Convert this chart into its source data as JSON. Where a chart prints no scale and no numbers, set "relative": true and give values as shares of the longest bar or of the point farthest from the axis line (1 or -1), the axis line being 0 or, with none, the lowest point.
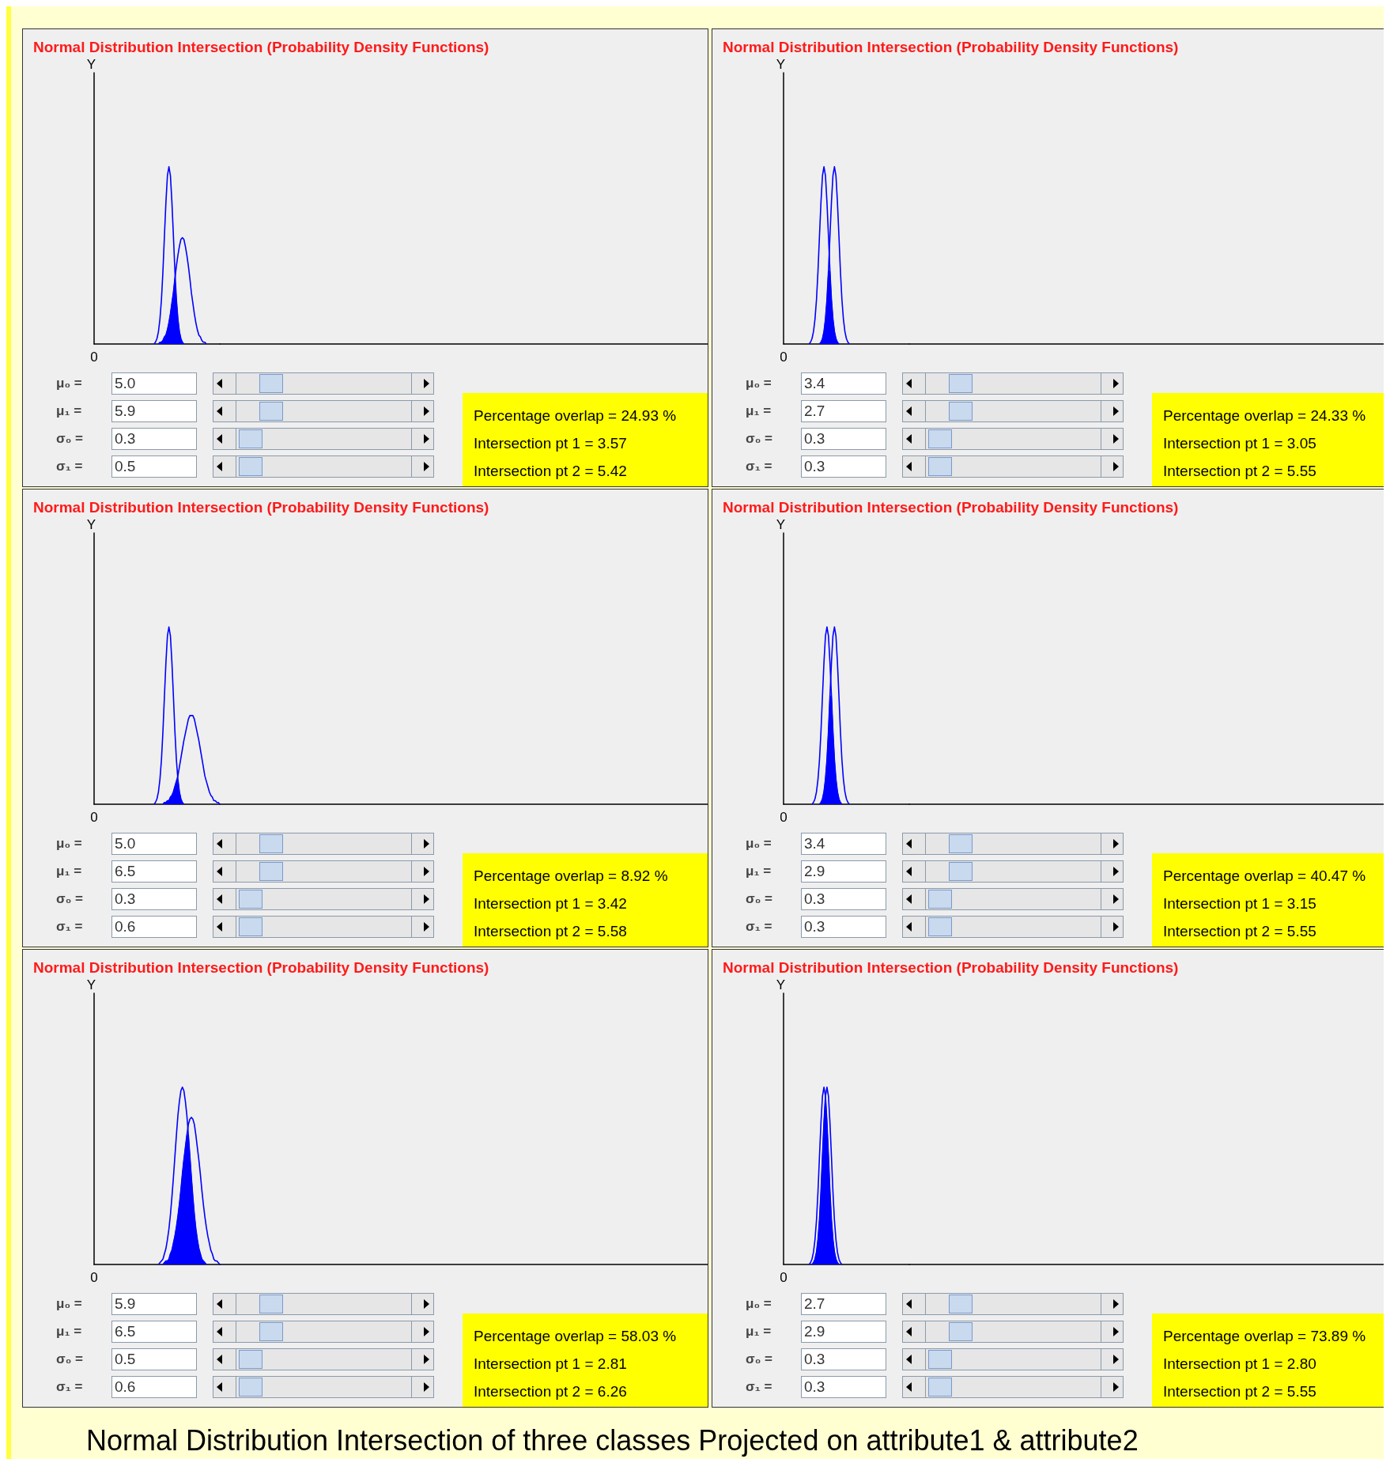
{
  "chart_data": [
    {
      "type": "line",
      "title": "Normal Distribution Intersection (Probability Density Functions)",
      "ylabel": "Y",
      "relative": true,
      "categories": [
        null,
        null,
        null,
        null,
        null,
        null,
        null,
        null,
        null,
        null,
        null,
        null,
        null,
        null,
        null,
        null,
        null,
        null,
        null,
        null,
        null,
        null,
        null,
        null,
        null,
        null,
        null,
        null,
        null,
        null,
        null,
        null,
        null,
        null,
        null,
        null,
        null,
        null,
        null,
        null,
        null,
        null,
        null,
        null,
        null,
        null,
        null,
        null,
        null,
        null,
        null,
        null,
        null,
        null,
        null,
        null,
        null,
        null,
        null,
        null,
        null,
        null,
        null,
        null,
        null,
        null,
        null,
        null,
        null,
        null,
        null,
        null,
        null,
        null,
        null,
        null,
        null,
        null,
        null,
        null,
        null,
        null,
        null,
        null,
        null
      ],
      "series": [
        {
          "color": "#0000ff",
          "values": [
            null,
            null,
            null,
            null,
            null,
            null,
            null,
            null,
            null,
            null,
            null,
            null,
            null,
            null,
            null,
            null,
            null,
            null,
            null,
            null,
            null,
            null,
            null,
            null,
            null,
            null,
            null,
            null,
            null,
            null,
            null,
            null,
            null,
            null,
            null,
            null,
            null,
            null,
            null,
            null,
            0,
            0.01,
            0.03,
            0.07,
            0.14,
            0.25,
            0.41,
            0.61,
            0.8,
            0.95,
            1,
            0.95,
            0.8,
            0.61,
            0.41,
            0.25,
            0.14,
            0.07,
            0.03,
            0.01,
            0,
            null,
            null,
            null,
            null,
            null,
            null,
            null,
            null,
            null,
            null,
            null,
            null,
            null,
            null,
            null,
            null,
            null,
            null,
            null,
            null,
            null,
            null,
            null,
            null
          ]
        },
        {
          "color": "#0000ff",
          "values": [
            null,
            null,
            null,
            null,
            null,
            null,
            null,
            null,
            null,
            null,
            null,
            null,
            null,
            null,
            null,
            null,
            null,
            null,
            null,
            null,
            null,
            null,
            null,
            null,
            null,
            null,
            null,
            null,
            null,
            null,
            null,
            null,
            null,
            null,
            null,
            null,
            null,
            null,
            null,
            null,
            null,
            null,
            null,
            0,
            0.01,
            0.01,
            0.02,
            0.04,
            0.05,
            0.08,
            0.12,
            0.17,
            0.23,
            0.29,
            0.37,
            0.44,
            0.5,
            0.55,
            0.59,
            0.6,
            0.59,
            0.55,
            0.5,
            0.44,
            0.37,
            0.29,
            0.23,
            0.17,
            0.12,
            0.08,
            0.05,
            0.04,
            0.02,
            0.01,
            0.01,
            0,
            null,
            null,
            null,
            null,
            null,
            null,
            null,
            null,
            null
          ]
        },
        {
          "type": "area",
          "color": "#0000ff",
          "values": [
            null,
            null,
            null,
            null,
            null,
            null,
            null,
            null,
            null,
            null,
            null,
            null,
            null,
            null,
            null,
            null,
            null,
            null,
            null,
            null,
            null,
            null,
            null,
            null,
            null,
            null,
            null,
            null,
            null,
            null,
            null,
            null,
            null,
            null,
            null,
            null,
            null,
            null,
            null,
            null,
            null,
            null,
            null,
            0,
            0.01,
            0.01,
            0.02,
            0.04,
            0.05,
            0.08,
            0.12,
            0.17,
            0.23,
            0.29,
            0.37,
            0.25,
            0.14,
            0.07,
            0.03,
            0.01,
            0,
            null,
            null,
            null,
            null,
            null,
            null,
            null,
            null,
            null,
            null,
            null,
            null,
            null,
            null,
            null,
            null,
            null,
            null,
            null,
            null,
            null,
            null,
            null,
            null
          ]
        }
      ],
      "annotations": [
        "0",
        "μ₀ = 5.0",
        "μ₁ = 5.9",
        "σ₀ = 0.3",
        "σ₁ = 0.5",
        "Percentage overlap = 24.93 %",
        "Intersection pt 1 = 3.57",
        "Intersection pt 2 = 5.42"
      ]
    },
    {
      "type": "line",
      "title": "Normal Distribution Intersection (Probability Density Functions)",
      "ylabel": "Y",
      "relative": true,
      "categories": [
        null,
        null,
        null,
        null,
        null,
        null,
        null,
        null,
        null,
        null,
        null,
        null,
        null,
        null,
        null,
        null,
        null,
        null,
        null,
        null,
        null,
        null,
        null,
        null,
        null,
        null,
        null,
        null,
        null,
        null,
        null,
        null,
        null,
        null,
        null,
        null,
        null,
        null,
        null,
        null,
        null,
        null,
        null,
        null,
        null,
        null,
        null,
        null,
        null,
        null,
        null,
        null,
        null,
        null,
        null,
        null,
        null,
        null,
        null,
        null,
        null,
        null,
        null,
        null,
        null,
        null,
        null,
        null,
        null,
        null,
        null,
        null,
        null,
        null,
        null,
        null,
        null,
        null,
        null,
        null,
        null,
        null,
        null,
        null,
        null
      ],
      "series": [
        {
          "color": "#0000ff",
          "values": [
            null,
            null,
            null,
            null,
            null,
            null,
            null,
            null,
            null,
            null,
            null,
            null,
            null,
            null,
            null,
            null,
            null,
            null,
            null,
            null,
            null,
            null,
            null,
            null,
            0,
            0.01,
            0.03,
            0.07,
            0.14,
            0.25,
            0.41,
            0.61,
            0.8,
            0.95,
            1,
            0.95,
            0.8,
            0.61,
            0.41,
            0.25,
            0.14,
            0.07,
            0.03,
            0.01,
            0,
            null,
            null,
            null,
            null,
            null,
            null,
            null,
            null,
            null,
            null,
            null,
            null,
            null,
            null,
            null,
            null,
            null,
            null,
            null,
            null,
            null,
            null,
            null,
            null,
            null,
            null,
            null,
            null,
            null,
            null,
            null,
            null,
            null,
            null,
            null,
            null,
            null,
            null,
            null,
            null
          ]
        },
        {
          "color": "#0000ff",
          "values": [
            null,
            null,
            null,
            null,
            null,
            null,
            null,
            null,
            null,
            null,
            null,
            null,
            null,
            null,
            null,
            null,
            null,
            0,
            0.01,
            0.03,
            0.07,
            0.14,
            0.25,
            0.41,
            0.61,
            0.8,
            0.95,
            1,
            0.95,
            0.8,
            0.61,
            0.41,
            0.25,
            0.14,
            0.07,
            0.03,
            0.01,
            0,
            null,
            null,
            null,
            null,
            null,
            null,
            null,
            null,
            null,
            null,
            null,
            null,
            null,
            null,
            null,
            null,
            null,
            null,
            null,
            null,
            null,
            null,
            null,
            null,
            null,
            null,
            null,
            null,
            null,
            null,
            null,
            null,
            null,
            null,
            null,
            null,
            null,
            null,
            null,
            null,
            null,
            null,
            null,
            null,
            null,
            null,
            null
          ]
        },
        {
          "type": "area",
          "color": "#0000ff",
          "values": [
            null,
            null,
            null,
            null,
            null,
            null,
            null,
            null,
            null,
            null,
            null,
            null,
            null,
            null,
            null,
            null,
            null,
            null,
            null,
            null,
            null,
            null,
            null,
            null,
            0,
            0.01,
            0.03,
            0.07,
            0.14,
            0.25,
            0.41,
            0.41,
            0.25,
            0.14,
            0.07,
            0.03,
            0.01,
            0,
            null,
            null,
            null,
            null,
            null,
            null,
            null,
            null,
            null,
            null,
            null,
            null,
            null,
            null,
            null,
            null,
            null,
            null,
            null,
            null,
            null,
            null,
            null,
            null,
            null,
            null,
            null,
            null,
            null,
            null,
            null,
            null,
            null,
            null,
            null,
            null,
            null,
            null,
            null,
            null,
            null,
            null,
            null,
            null,
            null,
            null,
            null
          ]
        }
      ],
      "annotations": [
        "0",
        "μ₀ = 3.4",
        "μ₁ = 2.7",
        "σ₀ = 0.3",
        "σ₁ = 0.3",
        "Percentage overlap = 24.33 %",
        "Intersection pt 1 = 3.05",
        "Intersection pt 2 = 5.55"
      ]
    },
    {
      "type": "line",
      "title": "Normal Distribution Intersection (Probability Density Functions)",
      "ylabel": "Y",
      "relative": true,
      "categories": [
        null,
        null,
        null,
        null,
        null,
        null,
        null,
        null,
        null,
        null,
        null,
        null,
        null,
        null,
        null,
        null,
        null,
        null,
        null,
        null,
        null,
        null,
        null,
        null,
        null,
        null,
        null,
        null,
        null,
        null,
        null,
        null,
        null,
        null,
        null,
        null,
        null,
        null,
        null,
        null,
        null,
        null,
        null,
        null,
        null,
        null,
        null,
        null,
        null,
        null,
        null,
        null,
        null,
        null,
        null,
        null,
        null,
        null,
        null,
        null,
        null,
        null,
        null,
        null,
        null,
        null,
        null,
        null,
        null,
        null,
        null,
        null,
        null,
        null,
        null,
        null,
        null,
        null,
        null,
        null,
        null,
        null,
        null,
        null,
        null
      ],
      "series": [
        {
          "color": "#0000ff",
          "values": [
            null,
            null,
            null,
            null,
            null,
            null,
            null,
            null,
            null,
            null,
            null,
            null,
            null,
            null,
            null,
            null,
            null,
            null,
            null,
            null,
            null,
            null,
            null,
            null,
            null,
            null,
            null,
            null,
            null,
            null,
            null,
            null,
            null,
            null,
            null,
            null,
            null,
            null,
            null,
            null,
            0,
            0.01,
            0.03,
            0.07,
            0.14,
            0.25,
            0.41,
            0.61,
            0.8,
            0.95,
            1,
            0.95,
            0.8,
            0.61,
            0.41,
            0.25,
            0.14,
            0.07,
            0.03,
            0.01,
            0,
            null,
            null,
            null,
            null,
            null,
            null,
            null,
            null,
            null,
            null,
            null,
            null,
            null,
            null,
            null,
            null,
            null,
            null,
            null,
            null,
            null,
            null,
            null,
            null
          ]
        },
        {
          "color": "#0000ff",
          "values": [
            null,
            null,
            null,
            null,
            null,
            null,
            null,
            null,
            null,
            null,
            null,
            null,
            null,
            null,
            null,
            null,
            null,
            null,
            null,
            null,
            null,
            null,
            null,
            null,
            null,
            null,
            null,
            null,
            null,
            null,
            null,
            null,
            null,
            null,
            null,
            null,
            null,
            null,
            null,
            null,
            null,
            null,
            null,
            null,
            null,
            null,
            0,
            0.01,
            0.01,
            0.02,
            0.02,
            0.04,
            0.05,
            0.07,
            0.1,
            0.13,
            0.16,
            0.21,
            0.26,
            0.31,
            0.36,
            0.4,
            0.44,
            0.48,
            0.5,
            0.5,
            0.5,
            0.48,
            0.44,
            0.4,
            0.36,
            0.31,
            0.26,
            0.21,
            0.16,
            0.13,
            0.1,
            0.07,
            0.05,
            0.04,
            0.02,
            0.02,
            0.01,
            0.01,
            0
          ]
        },
        {
          "type": "area",
          "color": "#0000ff",
          "values": [
            null,
            null,
            null,
            null,
            null,
            null,
            null,
            null,
            null,
            null,
            null,
            null,
            null,
            null,
            null,
            null,
            null,
            null,
            null,
            null,
            null,
            null,
            null,
            null,
            null,
            null,
            null,
            null,
            null,
            null,
            null,
            null,
            null,
            null,
            null,
            null,
            null,
            null,
            null,
            null,
            null,
            null,
            null,
            null,
            null,
            null,
            0,
            0.01,
            0.01,
            0.02,
            0.02,
            0.04,
            0.05,
            0.07,
            0.1,
            0.13,
            0.14,
            0.07,
            0.03,
            0.01,
            0,
            null,
            null,
            null,
            null,
            null,
            null,
            null,
            null,
            null,
            null,
            null,
            null,
            null,
            null,
            null,
            null,
            null,
            null,
            null,
            null,
            null,
            null,
            null,
            null
          ]
        }
      ],
      "annotations": [
        "0",
        "μ₀ = 5.0",
        "μ₁ = 6.5",
        "σ₀ = 0.3",
        "σ₁ = 0.6",
        "Percentage overlap = 8.92 %",
        "Intersection pt 1 = 3.42",
        "Intersection pt 2 = 5.58"
      ]
    },
    {
      "type": "line",
      "title": "Normal Distribution Intersection (Probability Density Functions)",
      "ylabel": "Y",
      "relative": true,
      "categories": [
        null,
        null,
        null,
        null,
        null,
        null,
        null,
        null,
        null,
        null,
        null,
        null,
        null,
        null,
        null,
        null,
        null,
        null,
        null,
        null,
        null,
        null,
        null,
        null,
        null,
        null,
        null,
        null,
        null,
        null,
        null,
        null,
        null,
        null,
        null,
        null,
        null,
        null,
        null,
        null,
        null,
        null,
        null,
        null,
        null,
        null,
        null,
        null,
        null,
        null,
        null,
        null,
        null,
        null,
        null,
        null,
        null,
        null,
        null,
        null,
        null,
        null,
        null,
        null,
        null,
        null,
        null,
        null,
        null,
        null,
        null,
        null,
        null,
        null,
        null,
        null,
        null,
        null,
        null,
        null,
        null,
        null,
        null,
        null,
        null
      ],
      "series": [
        {
          "color": "#0000ff",
          "values": [
            null,
            null,
            null,
            null,
            null,
            null,
            null,
            null,
            null,
            null,
            null,
            null,
            null,
            null,
            null,
            null,
            null,
            null,
            null,
            null,
            null,
            null,
            null,
            null,
            0,
            0.01,
            0.03,
            0.07,
            0.14,
            0.25,
            0.41,
            0.61,
            0.8,
            0.95,
            1,
            0.95,
            0.8,
            0.61,
            0.41,
            0.25,
            0.14,
            0.07,
            0.03,
            0.01,
            0,
            null,
            null,
            null,
            null,
            null,
            null,
            null,
            null,
            null,
            null,
            null,
            null,
            null,
            null,
            null,
            null,
            null,
            null,
            null,
            null,
            null,
            null,
            null,
            null,
            null,
            null,
            null,
            null,
            null,
            null,
            null,
            null,
            null,
            null,
            null,
            null,
            null,
            null,
            null,
            null
          ]
        },
        {
          "color": "#0000ff",
          "values": [
            null,
            null,
            null,
            null,
            null,
            null,
            null,
            null,
            null,
            null,
            null,
            null,
            null,
            null,
            null,
            null,
            null,
            null,
            null,
            0,
            0.01,
            0.03,
            0.07,
            0.14,
            0.25,
            0.41,
            0.61,
            0.8,
            0.95,
            1,
            0.95,
            0.8,
            0.61,
            0.41,
            0.25,
            0.14,
            0.07,
            0.03,
            0.01,
            0,
            null,
            null,
            null,
            null,
            null,
            null,
            null,
            null,
            null,
            null,
            null,
            null,
            null,
            null,
            null,
            null,
            null,
            null,
            null,
            null,
            null,
            null,
            null,
            null,
            null,
            null,
            null,
            null,
            null,
            null,
            null,
            null,
            null,
            null,
            null,
            null,
            null,
            null,
            null,
            null,
            null,
            null,
            null,
            null,
            null
          ]
        },
        {
          "type": "area",
          "color": "#0000ff",
          "values": [
            null,
            null,
            null,
            null,
            null,
            null,
            null,
            null,
            null,
            null,
            null,
            null,
            null,
            null,
            null,
            null,
            null,
            null,
            null,
            null,
            null,
            null,
            null,
            null,
            0,
            0.01,
            0.03,
            0.07,
            0.14,
            0.25,
            0.41,
            0.61,
            0.61,
            0.41,
            0.25,
            0.14,
            0.07,
            0.03,
            0.01,
            0,
            null,
            null,
            null,
            null,
            null,
            null,
            null,
            null,
            null,
            null,
            null,
            null,
            null,
            null,
            null,
            null,
            null,
            null,
            null,
            null,
            null,
            null,
            null,
            null,
            null,
            null,
            null,
            null,
            null,
            null,
            null,
            null,
            null,
            null,
            null,
            null,
            null,
            null,
            null,
            null,
            null,
            null,
            null,
            null,
            null
          ]
        }
      ],
      "annotations": [
        "0",
        "μ₀ = 3.4",
        "μ₁ = 2.9",
        "σ₀ = 0.3",
        "σ₁ = 0.3",
        "Percentage overlap = 40.47 %",
        "Intersection pt 1 = 3.15",
        "Intersection pt 2 = 5.55"
      ]
    },
    {
      "type": "line",
      "title": "Normal Distribution Intersection (Probability Density Functions)",
      "ylabel": "Y",
      "relative": true,
      "categories": [
        null,
        null,
        null,
        null,
        null,
        null,
        null,
        null,
        null,
        null,
        null,
        null,
        null,
        null,
        null,
        null,
        null,
        null,
        null,
        null,
        null,
        null,
        null,
        null,
        null,
        null,
        null,
        null,
        null,
        null,
        null,
        null,
        null,
        null,
        null,
        null,
        null,
        null,
        null,
        null,
        null,
        null,
        null,
        null,
        null,
        null,
        null,
        null,
        null,
        null,
        null,
        null,
        null,
        null,
        null,
        null,
        null,
        null,
        null,
        null,
        null,
        null,
        null,
        null,
        null,
        null,
        null,
        null,
        null,
        null,
        null,
        null,
        null,
        null,
        null,
        null,
        null,
        null,
        null,
        null,
        null,
        null,
        null,
        null,
        null
      ],
      "series": [
        {
          "color": "#0000ff",
          "values": [
            null,
            null,
            null,
            null,
            null,
            null,
            null,
            null,
            null,
            null,
            null,
            null,
            null,
            null,
            null,
            null,
            null,
            null,
            null,
            null,
            null,
            null,
            null,
            null,
            null,
            null,
            null,
            null,
            null,
            null,
            null,
            null,
            null,
            null,
            null,
            null,
            null,
            null,
            null,
            null,
            null,
            null,
            null,
            0,
            0.01,
            0.02,
            0.03,
            0.06,
            0.09,
            0.14,
            0.2,
            0.28,
            0.38,
            0.49,
            0.61,
            0.73,
            0.84,
            0.92,
            0.98,
            1,
            0.98,
            0.92,
            0.84,
            0.73,
            0.61,
            0.49,
            0.38,
            0.28,
            0.2,
            0.14,
            0.09,
            0.06,
            0.03,
            0.02,
            0.01,
            0,
            null,
            null,
            null,
            null,
            null,
            null,
            null,
            null,
            null
          ]
        },
        {
          "color": "#0000ff",
          "values": [
            null,
            null,
            null,
            null,
            null,
            null,
            null,
            null,
            null,
            null,
            null,
            null,
            null,
            null,
            null,
            null,
            null,
            null,
            null,
            null,
            null,
            null,
            null,
            null,
            null,
            null,
            null,
            null,
            null,
            null,
            null,
            null,
            null,
            null,
            null,
            null,
            null,
            null,
            null,
            null,
            null,
            null,
            null,
            null,
            null,
            null,
            0,
            0.01,
            0.02,
            0.02,
            0.03,
            0.06,
            0.08,
            0.12,
            0.16,
            0.21,
            0.27,
            0.34,
            0.42,
            0.51,
            0.59,
            0.66,
            0.73,
            0.79,
            0.82,
            0.83,
            0.82,
            0.79,
            0.73,
            0.66,
            0.59,
            0.51,
            0.42,
            0.34,
            0.27,
            0.21,
            0.16,
            0.12,
            0.08,
            0.06,
            0.03,
            0.02,
            0.02,
            0.01,
            0
          ]
        },
        {
          "type": "area",
          "color": "#0000ff",
          "values": [
            null,
            null,
            null,
            null,
            null,
            null,
            null,
            null,
            null,
            null,
            null,
            null,
            null,
            null,
            null,
            null,
            null,
            null,
            null,
            null,
            null,
            null,
            null,
            null,
            null,
            null,
            null,
            null,
            null,
            null,
            null,
            null,
            null,
            null,
            null,
            null,
            null,
            null,
            null,
            null,
            null,
            null,
            null,
            null,
            null,
            null,
            0,
            0.01,
            0.02,
            0.02,
            0.03,
            0.06,
            0.08,
            0.12,
            0.16,
            0.21,
            0.27,
            0.34,
            0.42,
            0.51,
            0.59,
            0.66,
            0.73,
            0.73,
            0.61,
            0.49,
            0.38,
            0.28,
            0.2,
            0.14,
            0.09,
            0.06,
            0.03,
            0.02,
            0.01,
            0,
            null,
            null,
            null,
            null,
            null,
            null,
            null,
            null,
            null
          ]
        }
      ],
      "annotations": [
        "0",
        "μ₀ = 5.9",
        "μ₁ = 6.5",
        "σ₀ = 0.5",
        "σ₁ = 0.6",
        "Percentage overlap = 58.03 %",
        "Intersection pt 1 = 2.81",
        "Intersection pt 2 = 6.26"
      ]
    },
    {
      "type": "line",
      "title": "Normal Distribution Intersection (Probability Density Functions)",
      "ylabel": "Y",
      "relative": true,
      "categories": [
        null,
        null,
        null,
        null,
        null,
        null,
        null,
        null,
        null,
        null,
        null,
        null,
        null,
        null,
        null,
        null,
        null,
        null,
        null,
        null,
        null,
        null,
        null,
        null,
        null,
        null,
        null,
        null,
        null,
        null,
        null,
        null,
        null,
        null,
        null,
        null,
        null,
        null,
        null,
        null,
        null,
        null,
        null,
        null,
        null,
        null,
        null,
        null,
        null,
        null,
        null,
        null,
        null,
        null,
        null,
        null,
        null,
        null,
        null,
        null,
        null,
        null,
        null,
        null,
        null,
        null,
        null,
        null,
        null,
        null,
        null,
        null,
        null,
        null,
        null,
        null,
        null,
        null,
        null,
        null,
        null,
        null,
        null,
        null,
        null
      ],
      "series": [
        {
          "color": "#0000ff",
          "values": [
            null,
            null,
            null,
            null,
            null,
            null,
            null,
            null,
            null,
            null,
            null,
            null,
            null,
            null,
            null,
            null,
            null,
            0,
            0.01,
            0.03,
            0.07,
            0.14,
            0.25,
            0.41,
            0.61,
            0.8,
            0.95,
            1,
            0.95,
            0.8,
            0.61,
            0.41,
            0.25,
            0.14,
            0.07,
            0.03,
            0.01,
            0,
            null,
            null,
            null,
            null,
            null,
            null,
            null,
            null,
            null,
            null,
            null,
            null,
            null,
            null,
            null,
            null,
            null,
            null,
            null,
            null,
            null,
            null,
            null,
            null,
            null,
            null,
            null,
            null,
            null,
            null,
            null,
            null,
            null,
            null,
            null,
            null,
            null,
            null,
            null,
            null,
            null,
            null,
            null,
            null,
            null,
            null,
            null
          ]
        },
        {
          "color": "#0000ff",
          "values": [
            null,
            null,
            null,
            null,
            null,
            null,
            null,
            null,
            null,
            null,
            null,
            null,
            null,
            null,
            null,
            null,
            null,
            null,
            null,
            0,
            0.01,
            0.03,
            0.07,
            0.14,
            0.25,
            0.41,
            0.61,
            0.8,
            0.95,
            1,
            0.95,
            0.8,
            0.61,
            0.41,
            0.25,
            0.14,
            0.07,
            0.03,
            0.01,
            0,
            null,
            null,
            null,
            null,
            null,
            null,
            null,
            null,
            null,
            null,
            null,
            null,
            null,
            null,
            null,
            null,
            null,
            null,
            null,
            null,
            null,
            null,
            null,
            null,
            null,
            null,
            null,
            null,
            null,
            null,
            null,
            null,
            null,
            null,
            null,
            null,
            null,
            null,
            null,
            null,
            null,
            null,
            null,
            null,
            null
          ]
        },
        {
          "type": "area",
          "color": "#0000ff",
          "values": [
            null,
            null,
            null,
            null,
            null,
            null,
            null,
            null,
            null,
            null,
            null,
            null,
            null,
            null,
            null,
            null,
            null,
            null,
            null,
            0,
            0.01,
            0.03,
            0.07,
            0.14,
            0.25,
            0.41,
            0.61,
            0.8,
            0.95,
            0.8,
            0.61,
            0.41,
            0.25,
            0.14,
            0.07,
            0.03,
            0.01,
            0,
            null,
            null,
            null,
            null,
            null,
            null,
            null,
            null,
            null,
            null,
            null,
            null,
            null,
            null,
            null,
            null,
            null,
            null,
            null,
            null,
            null,
            null,
            null,
            null,
            null,
            null,
            null,
            null,
            null,
            null,
            null,
            null,
            null,
            null,
            null,
            null,
            null,
            null,
            null,
            null,
            null,
            null,
            null,
            null,
            null,
            null,
            null
          ]
        }
      ],
      "annotations": [
        "0",
        "μ₀ = 2.7",
        "μ₁ = 2.9",
        "σ₀ = 0.3",
        "σ₁ = 0.3",
        "Percentage overlap = 73.89 %",
        "Intersection pt 1 = 2.80",
        "Intersection pt 2 = 5.55"
      ]
    },
    {
      "type": "other",
      "title": "Normal Distribution Intersection of three classes Projected on attribute1 & attribute2"
    }
  ]
}
